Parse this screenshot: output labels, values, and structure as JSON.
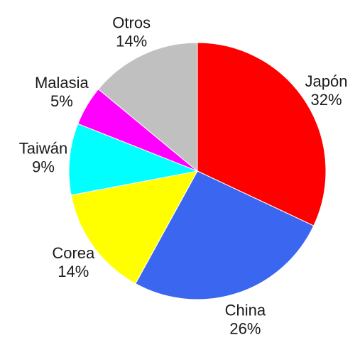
{
  "chart_data": {
    "type": "pie",
    "start_angle_deg": 0,
    "direction": "clockwise",
    "slices": [
      {
        "label": "Japón",
        "pct_label": "32%",
        "value": 32,
        "color": "#ff0000"
      },
      {
        "label": "China",
        "pct_label": "26%",
        "value": 26,
        "color": "#3a66f0"
      },
      {
        "label": "Corea",
        "pct_label": "14%",
        "value": 14,
        "color": "#ffff00"
      },
      {
        "label": "Taiwán",
        "pct_label": "9%",
        "value": 9,
        "color": "#00ffff"
      },
      {
        "label": "Malasia",
        "pct_label": "5%",
        "value": 5,
        "color": "#ff00ff"
      },
      {
        "label": "Otros",
        "pct_label": "14%",
        "value": 14,
        "color": "#c0c0c0"
      }
    ]
  }
}
